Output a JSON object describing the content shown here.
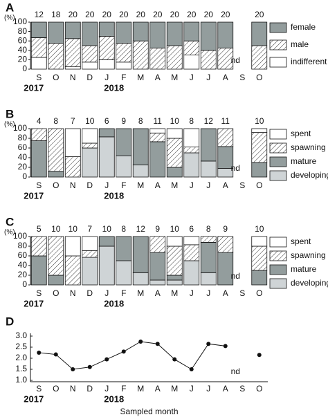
{
  "chart_data": [
    {
      "type": "bar",
      "stacked": true,
      "panel_label": "A",
      "unit_label": "(%)",
      "annotation": "nd",
      "categories": [
        "S",
        "O",
        "N",
        "D",
        "J",
        "F",
        "M",
        "A",
        "M",
        "J",
        "J",
        "A",
        "S",
        "O"
      ],
      "year_labels": [
        "2017",
        "2018"
      ],
      "sample_sizes": [
        12,
        18,
        20,
        20,
        20,
        20,
        20,
        20,
        20,
        20,
        20,
        20,
        null,
        20
      ],
      "ylim": [
        0,
        100
      ],
      "yticks": [
        0,
        20,
        40,
        60,
        80,
        100
      ],
      "series": [
        {
          "name": "female",
          "color": "#939d9d",
          "values": [
            33,
            45,
            35,
            50,
            30,
            45,
            40,
            55,
            50,
            40,
            60,
            55,
            null,
            50
          ]
        },
        {
          "name": "male",
          "color": "#ffffff",
          "pattern": "hatch",
          "values": [
            42,
            55,
            60,
            35,
            50,
            40,
            60,
            45,
            50,
            30,
            40,
            45,
            null,
            50
          ]
        },
        {
          "name": "indifferent",
          "color": "#ffffff",
          "values": [
            25,
            0,
            5,
            15,
            20,
            15,
            0,
            0,
            0,
            30,
            0,
            0,
            null,
            0
          ]
        }
      ]
    },
    {
      "type": "bar",
      "stacked": true,
      "panel_label": "B",
      "unit_label": "(%)",
      "annotation": "nd",
      "categories": [
        "S",
        "O",
        "N",
        "D",
        "J",
        "F",
        "M",
        "A",
        "M",
        "J",
        "J",
        "A",
        "S",
        "O"
      ],
      "year_labels": [
        "2017",
        "2018"
      ],
      "sample_sizes": [
        4,
        8,
        7,
        10,
        6,
        9,
        8,
        11,
        10,
        8,
        12,
        11,
        null,
        10
      ],
      "ylim": [
        0,
        100
      ],
      "yticks": [
        0,
        20,
        40,
        60,
        80,
        100
      ],
      "series": [
        {
          "name": "spent",
          "color": "#ffffff",
          "values": [
            0,
            0,
            58,
            30,
            0,
            0,
            0,
            9,
            20,
            38,
            0,
            0,
            null,
            8
          ]
        },
        {
          "name": "spawning",
          "color": "#ffffff",
          "pattern": "hatch",
          "values": [
            25,
            88,
            42,
            10,
            0,
            0,
            0,
            18,
            60,
            12,
            0,
            37,
            null,
            62
          ]
        },
        {
          "name": "mature",
          "color": "#939d9d",
          "values": [
            75,
            12,
            0,
            0,
            17,
            56,
            75,
            73,
            20,
            0,
            67,
            45,
            null,
            30
          ]
        },
        {
          "name": "developing",
          "color": "#cfd4d6",
          "values": [
            0,
            0,
            0,
            60,
            83,
            44,
            25,
            0,
            0,
            50,
            33,
            18,
            null,
            0
          ]
        }
      ]
    },
    {
      "type": "bar",
      "stacked": true,
      "panel_label": "C",
      "unit_label": "(%)",
      "annotation": "nd",
      "categories": [
        "S",
        "O",
        "N",
        "D",
        "J",
        "F",
        "M",
        "A",
        "M",
        "J",
        "J",
        "A",
        "S",
        "O"
      ],
      "year_labels": [
        "2017",
        "2018"
      ],
      "sample_sizes": [
        5,
        10,
        10,
        7,
        10,
        8,
        12,
        9,
        10,
        6,
        8,
        9,
        null,
        10
      ],
      "ylim": [
        0,
        100
      ],
      "yticks": [
        0,
        20,
        40,
        60,
        80,
        100
      ],
      "series": [
        {
          "name": "spent",
          "color": "#ffffff",
          "values": [
            0,
            0,
            40,
            29,
            0,
            0,
            0,
            0,
            20,
            17,
            0,
            0,
            null,
            20
          ]
        },
        {
          "name": "spawning",
          "color": "#ffffff",
          "pattern": "hatch",
          "values": [
            40,
            80,
            60,
            14,
            0,
            0,
            0,
            33,
            60,
            33,
            12,
            33,
            null,
            50
          ]
        },
        {
          "name": "mature",
          "color": "#939d9d",
          "values": [
            60,
            20,
            0,
            0,
            20,
            50,
            75,
            57,
            10,
            0,
            63,
            67,
            null,
            30
          ]
        },
        {
          "name": "developing",
          "color": "#cfd4d6",
          "values": [
            0,
            0,
            0,
            57,
            80,
            50,
            25,
            10,
            10,
            50,
            25,
            0,
            null,
            0
          ]
        }
      ]
    },
    {
      "type": "line",
      "panel_label": "D",
      "annotation": "nd",
      "x_label": "Sampled month",
      "categories": [
        "S",
        "O",
        "N",
        "D",
        "J",
        "F",
        "M",
        "A",
        "M",
        "J",
        "J",
        "A",
        "S",
        "O"
      ],
      "year_labels": [
        "2017",
        "2018"
      ],
      "ylim": [
        1,
        3
      ],
      "yticks": [
        {
          "value": 1,
          "label": "1.0"
        },
        {
          "value": 1.5,
          "label": "1.5"
        },
        {
          "value": 2,
          "label": "2.0"
        },
        {
          "value": 2.5,
          "label": "2.5"
        },
        {
          "value": 3,
          "label": "3.0"
        }
      ],
      "color": "#111111",
      "values": [
        2.25,
        2.17,
        1.5,
        1.6,
        1.95,
        2.3,
        2.75,
        2.65,
        1.95,
        1.5,
        2.65,
        2.55,
        null,
        2.15
      ]
    }
  ]
}
